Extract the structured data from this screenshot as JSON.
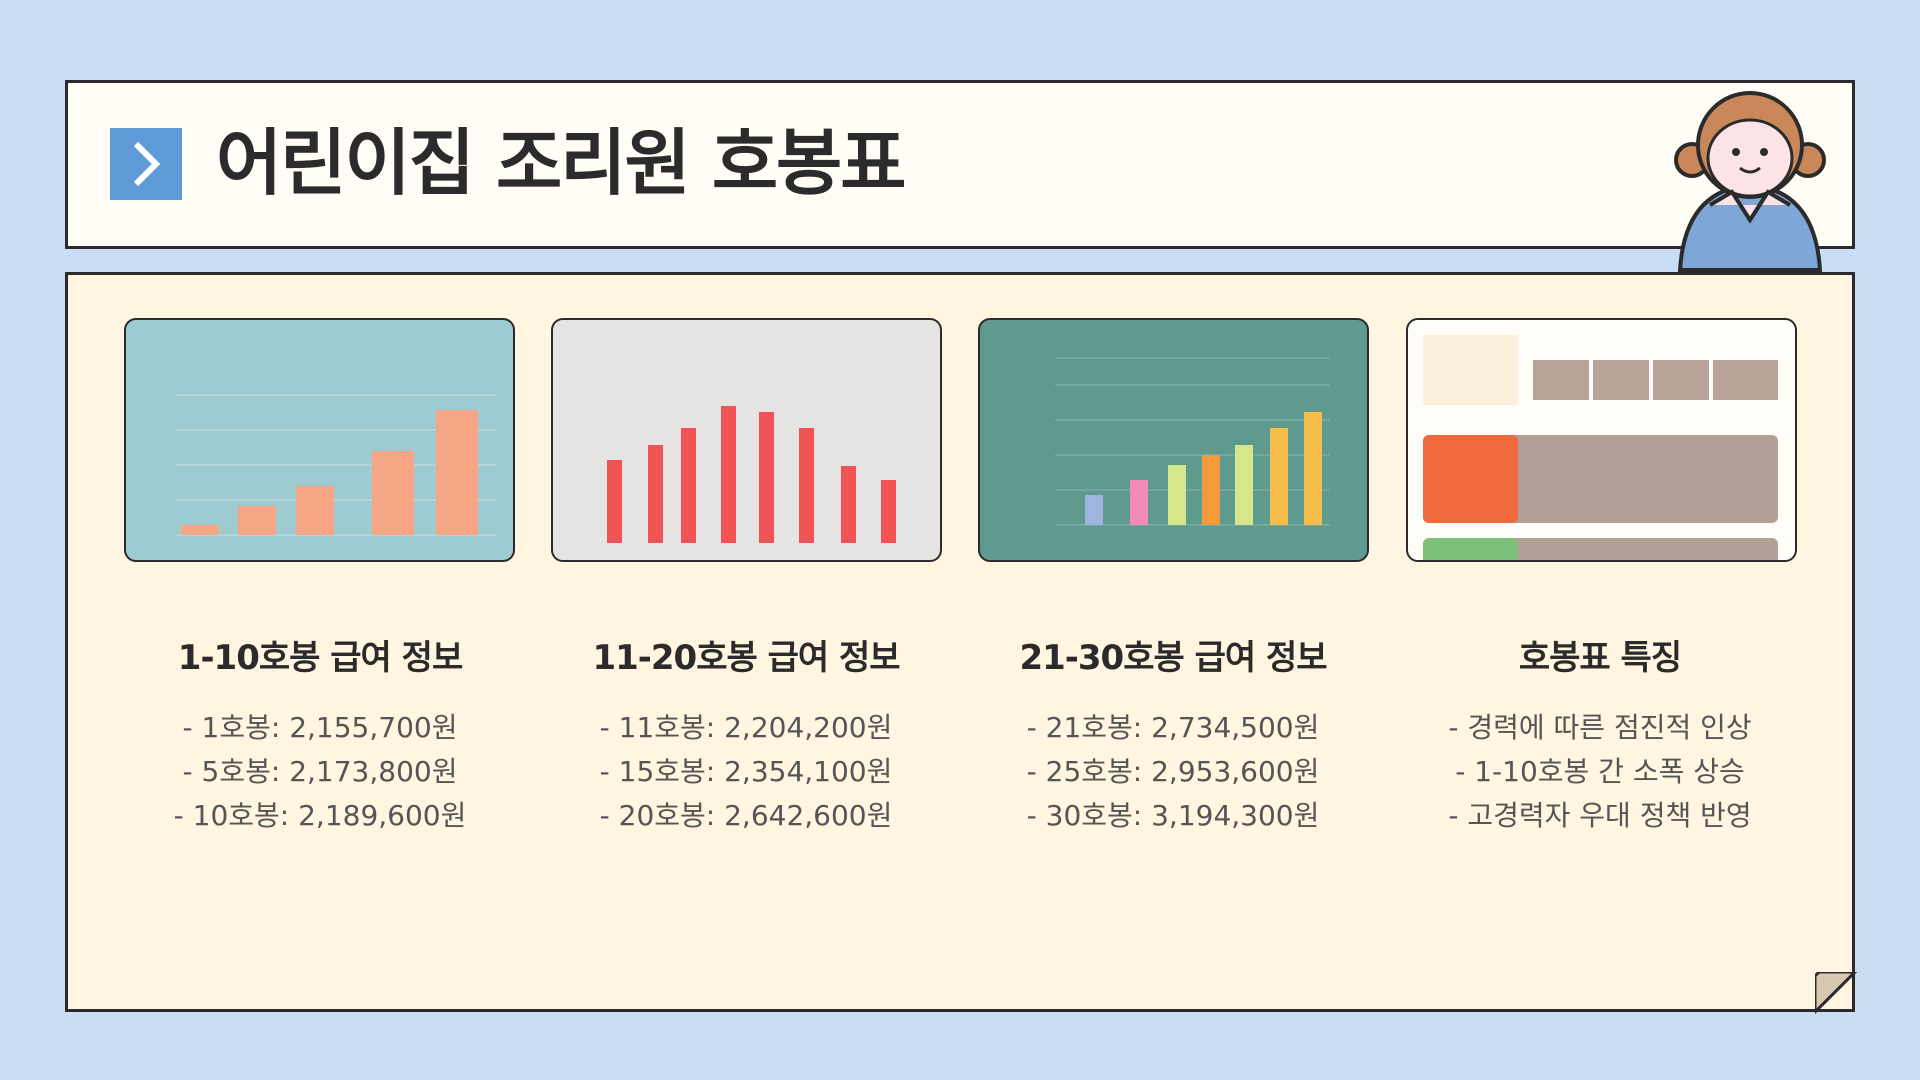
{
  "header": {
    "title": "어린이집 조리원 호봉표"
  },
  "columns": [
    {
      "heading": "1-10호봉 급여 정보",
      "items": [
        "- 1호봉: 2,155,700원",
        "- 5호봉: 2,173,800원",
        "- 10호봉: 2,189,600원"
      ]
    },
    {
      "heading": "11-20호봉 급여 정보",
      "items": [
        "- 11호봉: 2,204,200원",
        "- 15호봉: 2,354,100원",
        "- 20호봉: 2,642,600원"
      ]
    },
    {
      "heading": "21-30호봉 급여 정보",
      "items": [
        "- 21호봉: 2,734,500원",
        "- 25호봉: 2,953,600원",
        "- 30호봉: 3,194,300원"
      ]
    },
    {
      "heading": "호봉표 특징",
      "items": [
        "- 경력에 따른 점진적 인상",
        "- 1-10호봉 간 소폭 상승",
        "- 고경력자 우대 정책 반영"
      ]
    }
  ]
}
